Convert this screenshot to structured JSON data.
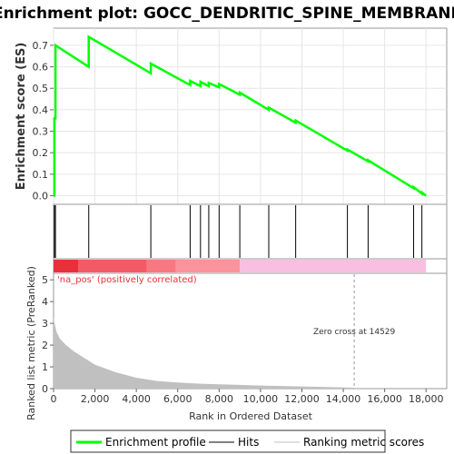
{
  "chart_data": {
    "type": "line",
    "title": "Enrichment plot: GOCC_DENDRITIC_SPINE_MEMBRANE",
    "xlabel": "Rank in Ordered Dataset",
    "xlim": [
      0,
      19000
    ],
    "x_ticks": [
      0,
      2000,
      4000,
      6000,
      8000,
      10000,
      12000,
      14000,
      16000,
      18000
    ],
    "x_tick_labels": [
      "0",
      "2,000",
      "4,000",
      "6,000",
      "8,000",
      "10,000",
      "12,000",
      "14,000",
      "16,000",
      "18,000"
    ],
    "enrichment": {
      "ylabel": "Enrichment score (ES)",
      "ylim": [
        -0.04,
        0.78
      ],
      "y_ticks": [
        0.0,
        0.1,
        0.2,
        0.3,
        0.4,
        0.5,
        0.6,
        0.7
      ],
      "y_tick_labels": [
        "0.0",
        "0.1",
        "0.2",
        "0.3",
        "0.4",
        "0.5",
        "0.6",
        "0.7"
      ],
      "color": "#00ff00",
      "x": [
        0,
        40,
        40,
        90,
        90,
        1700,
        1700,
        4700,
        4700,
        6600,
        6600,
        7100,
        7100,
        7500,
        7500,
        8000,
        8000,
        9000,
        9000,
        10400,
        10400,
        11700,
        11700,
        14200,
        14200,
        15200,
        15200,
        17400,
        17400,
        17800,
        17800,
        18000
      ],
      "y": [
        0.0,
        0.0,
        0.36,
        0.36,
        0.7,
        0.6,
        0.74,
        0.57,
        0.615,
        0.515,
        0.535,
        0.51,
        0.53,
        0.51,
        0.525,
        0.505,
        0.52,
        0.47,
        0.48,
        0.4,
        0.41,
        0.34,
        0.35,
        0.21,
        0.215,
        0.16,
        0.165,
        0.035,
        0.04,
        0.01,
        0.015,
        0.0
      ]
    },
    "hits": {
      "positions": [
        40,
        90,
        1700,
        4700,
        6600,
        7100,
        7500,
        8000,
        9000,
        10400,
        11700,
        14200,
        15200,
        17400,
        17800
      ],
      "color": "#000000"
    },
    "color_bar": {
      "segments": [
        {
          "from": 0,
          "to": 1200,
          "color": "#e8303a"
        },
        {
          "from": 1200,
          "to": 4500,
          "color": "#f45a66"
        },
        {
          "from": 4500,
          "to": 5900,
          "color": "#f87882"
        },
        {
          "from": 5900,
          "to": 9000,
          "color": "#fb939c"
        },
        {
          "from": 9000,
          "to": 18000,
          "color": "#f9bfe0"
        }
      ],
      "label_positive": "'na_pos' (positively correlated)",
      "positive_color": "#e8303a"
    },
    "ranked": {
      "ylabel": "Ranked list metric (PreRanked)",
      "ylim": [
        0,
        5.3
      ],
      "y_ticks": [
        0,
        1,
        2,
        3,
        4,
        5
      ],
      "y_tick_labels": [
        "0",
        "1",
        "2",
        "3",
        "4",
        "5"
      ],
      "fill_color": "#c0c0c0",
      "x": [
        0,
        50,
        150,
        300,
        600,
        1000,
        1500,
        2000,
        3000,
        4000,
        5000,
        6000,
        7000,
        8000,
        9000,
        10000,
        11000,
        12000,
        13000,
        14000,
        14529,
        14529
      ],
      "y": [
        3.3,
        3.0,
        2.6,
        2.3,
        2.0,
        1.7,
        1.4,
        1.1,
        0.75,
        0.5,
        0.35,
        0.28,
        0.23,
        0.2,
        0.17,
        0.14,
        0.12,
        0.1,
        0.08,
        0.06,
        0.04,
        0
      ],
      "zero_cross_label": "Zero cross at 14529",
      "zero_cross": 14529
    },
    "legend": {
      "placement": "bottom",
      "items": [
        {
          "label": "Enrichment profile",
          "color": "#00ff00"
        },
        {
          "label": "Hits",
          "color": "#000000"
        },
        {
          "label": "Ranking metric scores",
          "color": "#c0c0c0"
        }
      ]
    }
  }
}
